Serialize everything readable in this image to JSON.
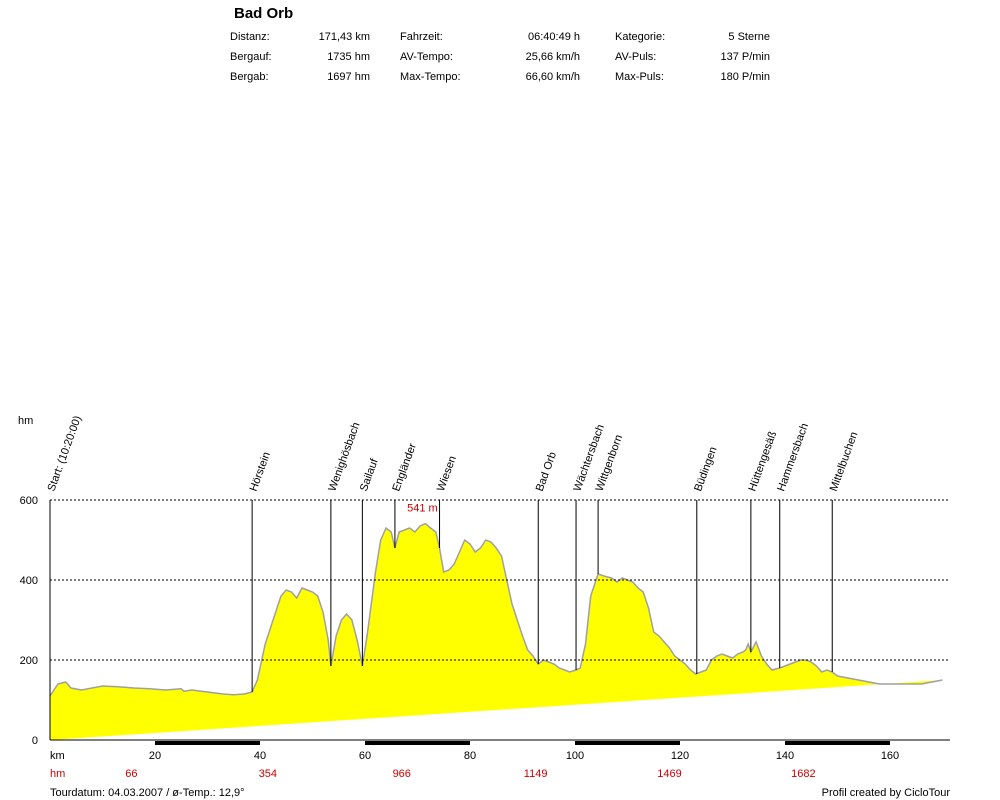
{
  "header": {
    "title": "Bad Orb",
    "stats": [
      [
        {
          "label": "Distanz:",
          "value": "171,43 km"
        },
        {
          "label": "Fahrzeit:",
          "value": "06:40:49 h"
        },
        {
          "label": "Kategorie:",
          "value": "5 Sterne"
        }
      ],
      [
        {
          "label": "Bergauf:",
          "value": "1735 hm"
        },
        {
          "label": "AV-Tempo:",
          "value": "25,66 km/h"
        },
        {
          "label": "AV-Puls:",
          "value": "137 P/min"
        }
      ],
      [
        {
          "label": "Bergab:",
          "value": "1697 hm"
        },
        {
          "label": "Max-Tempo:",
          "value": "66,60 km/h"
        },
        {
          "label": "Max-Puls:",
          "value": "180 P/min"
        }
      ]
    ]
  },
  "chart_data": {
    "type": "area",
    "ylabel": "hm",
    "xlabel": "km",
    "xlim": [
      0,
      171.43
    ],
    "ylim": [
      0,
      600
    ],
    "y_ticks": [
      0,
      200,
      400,
      600
    ],
    "x_ticks": [
      20,
      40,
      60,
      80,
      100,
      120,
      140,
      160
    ],
    "grid": "horizontal dashed at 200, 400, 600",
    "fill_color": "#ffff00",
    "outline_color": "#a0a0a0",
    "max_label": {
      "text": "541 m",
      "x": 71.5,
      "y": 541
    },
    "cumulative_hm_ticks": [
      {
        "x": 15.5,
        "label": "66"
      },
      {
        "x": 41.5,
        "label": "354"
      },
      {
        "x": 67,
        "label": "966"
      },
      {
        "x": 92.5,
        "label": "1149"
      },
      {
        "x": 118,
        "label": "1469"
      },
      {
        "x": 143.5,
        "label": "1682"
      }
    ],
    "waypoints": [
      {
        "x": 0,
        "label": "Start: (10:20:00)"
      },
      {
        "x": 38.5,
        "label": "Hörstein"
      },
      {
        "x": 53.5,
        "label": "Wenighösbach"
      },
      {
        "x": 59.5,
        "label": "Sailauf"
      },
      {
        "x": 65.7,
        "label": "Engländer"
      },
      {
        "x": 74.2,
        "label": "Wiesen"
      },
      {
        "x": 93,
        "label": "Bad Orb"
      },
      {
        "x": 100.2,
        "label": "Wächtersbach"
      },
      {
        "x": 104.4,
        "label": "Wittgenborn"
      },
      {
        "x": 123.2,
        "label": "Büdingen"
      },
      {
        "x": 133.5,
        "label": "Hüttengesäß"
      },
      {
        "x": 139,
        "label": "Hammersbach"
      },
      {
        "x": 149,
        "label": "Mittelbuchen"
      }
    ],
    "profile_x": [
      0,
      1.5,
      3,
      4,
      6,
      8,
      10,
      13,
      16,
      19,
      22,
      25,
      25.5,
      27,
      30,
      33,
      35,
      37,
      38.5,
      39.5,
      41,
      43,
      44,
      45,
      46,
      47,
      48,
      49,
      50,
      51,
      52,
      53,
      53.5,
      54.5,
      55.5,
      56.5,
      57.5,
      58.5,
      59.5,
      60.5,
      62,
      63,
      64,
      65,
      65.7,
      66.5,
      67.5,
      68.5,
      69.5,
      70.5,
      71.5,
      72.5,
      73.5,
      74.2,
      75,
      76,
      77,
      78,
      79,
      80,
      81,
      82,
      83,
      84,
      85,
      86,
      88,
      90,
      91,
      92,
      93,
      94,
      95,
      96,
      97,
      98,
      99,
      100.2,
      101,
      102,
      103,
      104.4,
      105.5,
      107,
      108,
      109,
      110,
      111,
      112,
      113,
      114,
      115,
      116,
      117,
      118,
      119,
      120,
      121,
      122,
      123,
      124,
      125,
      126,
      127,
      128,
      129,
      130,
      131,
      132,
      132.5,
      133,
      133.5,
      134.5,
      135.5,
      136.5,
      137.5,
      139,
      140,
      141,
      142,
      143,
      144,
      145,
      146,
      147,
      148,
      149,
      150,
      152,
      154,
      156,
      158,
      160,
      162,
      164,
      166,
      168,
      170,
      171.43
    ],
    "profile_y": [
      110,
      140,
      145,
      130,
      125,
      130,
      135,
      133,
      130,
      128,
      125,
      128,
      122,
      125,
      120,
      115,
      113,
      115,
      120,
      150,
      240,
      320,
      360,
      375,
      370,
      355,
      380,
      375,
      370,
      360,
      320,
      250,
      185,
      260,
      300,
      315,
      300,
      250,
      185,
      270,
      420,
      500,
      530,
      520,
      480,
      520,
      525,
      530,
      520,
      535,
      541,
      530,
      520,
      480,
      420,
      425,
      440,
      470,
      500,
      490,
      470,
      480,
      500,
      495,
      480,
      460,
      340,
      260,
      225,
      210,
      190,
      200,
      195,
      190,
      180,
      175,
      170,
      175,
      180,
      240,
      360,
      415,
      410,
      405,
      395,
      405,
      400,
      395,
      380,
      370,
      330,
      270,
      260,
      245,
      230,
      210,
      200,
      190,
      175,
      165,
      170,
      175,
      200,
      210,
      215,
      210,
      205,
      215,
      220,
      225,
      240,
      220,
      245,
      210,
      190,
      175,
      180,
      185,
      190,
      195,
      200,
      200,
      195,
      185,
      170,
      175,
      170,
      160,
      155,
      150,
      145,
      140,
      140,
      140,
      140,
      140,
      145,
      150
    ]
  },
  "footer": {
    "axis_km": "km",
    "axis_hm": "hm",
    "tourdatum": "Tourdatum: 04.03.2007  /  ø-Temp.: 12,9°",
    "credit": "Profil created by CicloTour"
  }
}
